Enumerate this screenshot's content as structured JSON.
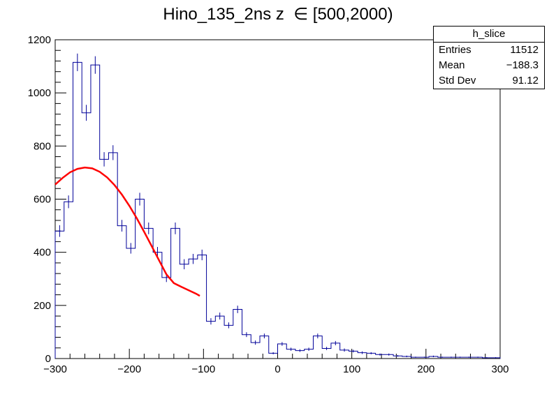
{
  "chart_data": {
    "type": "bar",
    "title": "Hino_135_2ns z  ∈ [500,2000)",
    "xlabel": "",
    "ylabel": "",
    "xlim": [
      -300,
      300
    ],
    "ylim": [
      0,
      1200
    ],
    "x_ticks": [
      -300,
      -200,
      -100,
      0,
      100,
      200,
      300
    ],
    "y_ticks": [
      0,
      200,
      400,
      600,
      800,
      1000,
      1200
    ],
    "bin_width": 12,
    "bin_edges_start": -300,
    "values": [
      480,
      590,
      1115,
      925,
      1105,
      750,
      775,
      500,
      415,
      600,
      490,
      400,
      305,
      490,
      355,
      375,
      390,
      140,
      160,
      125,
      185,
      90,
      60,
      85,
      20,
      55,
      35,
      30,
      35,
      85,
      38,
      58,
      32,
      28,
      22,
      20,
      15,
      15,
      10,
      8,
      5,
      5,
      8,
      5,
      5,
      5,
      5,
      5,
      3,
      3
    ],
    "errors": [
      22,
      24,
      33,
      30,
      33,
      27,
      28,
      22,
      20,
      24,
      22,
      20,
      17,
      22,
      19,
      19,
      20,
      12,
      13,
      11,
      14,
      9,
      8,
      9,
      4,
      7,
      6,
      5,
      6,
      9,
      6,
      8,
      6,
      5,
      5,
      4,
      4,
      4,
      3,
      3,
      2,
      2,
      3,
      2,
      2,
      2,
      2,
      2,
      2,
      2
    ],
    "fit": {
      "name": "",
      "color": "#ff0000",
      "x_range": [
        -300,
        -105
      ],
      "points": [
        [
          -300,
          655
        ],
        [
          -290,
          680
        ],
        [
          -280,
          701
        ],
        [
          -270,
          714
        ],
        [
          -260,
          719
        ],
        [
          -250,
          716
        ],
        [
          -240,
          703
        ],
        [
          -230,
          682
        ],
        [
          -220,
          653
        ],
        [
          -210,
          617
        ],
        [
          -200,
          575
        ],
        [
          -190,
          528
        ],
        [
          -180,
          477
        ],
        [
          -170,
          424
        ],
        [
          -160,
          370
        ],
        [
          -150,
          317
        ],
        [
          -140,
          284
        ],
        [
          -130,
          270
        ],
        [
          -120,
          257
        ],
        [
          -110,
          244
        ],
        [
          -105,
          236
        ]
      ]
    },
    "line_color": "#000099",
    "grid": false,
    "legend_position": "top-right"
  },
  "stats_box": {
    "name": "h_slice",
    "rows": [
      {
        "label": "Entries",
        "value": "11512"
      },
      {
        "label": "Mean",
        "value": "−188.3"
      },
      {
        "label": "Std Dev",
        "value": "91.12"
      }
    ]
  }
}
